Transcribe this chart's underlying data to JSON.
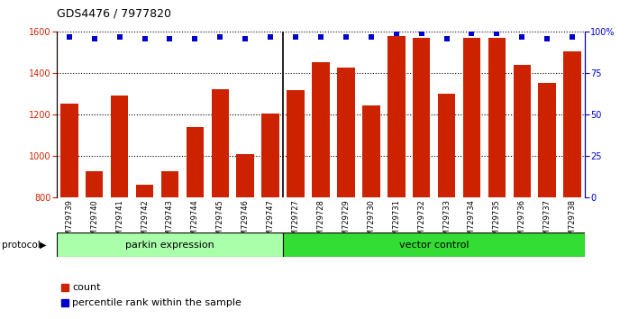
{
  "title": "GDS4476 / 7977820",
  "samples": [
    "GSM729739",
    "GSM729740",
    "GSM729741",
    "GSM729742",
    "GSM729743",
    "GSM729744",
    "GSM729745",
    "GSM729746",
    "GSM729747",
    "GSM729727",
    "GSM729728",
    "GSM729729",
    "GSM729730",
    "GSM729731",
    "GSM729732",
    "GSM729733",
    "GSM729734",
    "GSM729735",
    "GSM729736",
    "GSM729737",
    "GSM729738"
  ],
  "counts": [
    1255,
    930,
    1295,
    862,
    930,
    1140,
    1325,
    1010,
    1205,
    1320,
    1455,
    1430,
    1245,
    1580,
    1570,
    1300,
    1570,
    1570,
    1440,
    1355,
    1505
  ],
  "percentile_ranks": [
    97,
    96,
    97,
    96,
    96,
    96,
    97,
    96,
    97,
    97,
    97,
    97,
    97,
    99,
    99,
    96,
    99,
    99,
    97,
    96,
    97
  ],
  "bar_color": "#cc2200",
  "dot_color": "#0000cc",
  "ylim_left": [
    800,
    1600
  ],
  "ylim_right": [
    0,
    100
  ],
  "yticks_left": [
    800,
    1000,
    1200,
    1400,
    1600
  ],
  "yticks_right": [
    0,
    25,
    50,
    75,
    100
  ],
  "group1_label": "parkin expression",
  "group2_label": "vector control",
  "group1_count": 9,
  "group2_count": 12,
  "group1_color": "#aaffaa",
  "group2_color": "#33dd33",
  "protocol_label": "protocol",
  "legend_count_label": "count",
  "legend_pct_label": "percentile rank within the sample",
  "title_fontsize": 9,
  "tick_fontsize": 7,
  "background_color": "#ffffff"
}
